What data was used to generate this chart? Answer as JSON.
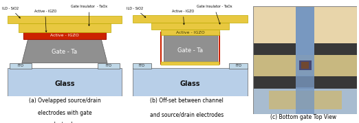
{
  "fig_width": 5.22,
  "fig_height": 1.79,
  "dpi": 100,
  "background": "#ffffff",
  "diagram_a": {
    "glass_color": "#b8cfe8",
    "glass_label": "Glass",
    "ito_color": "#c0d8e8",
    "gate_color": "#909090",
    "gate_label": "Gate - Ta",
    "active_color": "#cc2200",
    "insulator_color": "#e8c840",
    "label_gate_insulator": "Gate Insulator  - TaOx",
    "label_ild": "ILD - SiO2",
    "label_active": "Active - IGZO",
    "label_ito_left": "ITO",
    "label_ito_right": "ITO"
  },
  "diagram_b": {
    "glass_color": "#b8cfe8",
    "glass_label": "Glass",
    "ito_color": "#c0d8e8",
    "gate_color": "#909090",
    "gate_label": "Gate - Ta",
    "active_color": "#cc2200",
    "insulator_color": "#e8c840",
    "label_gate_insulator": "Gate Insulator - TaOx",
    "label_ild": "ILD - SiO2",
    "label_active": "Active - IGZO",
    "label_ito_left": "ITO",
    "label_ito_right": "ITO"
  },
  "diagram_c": {
    "title": "(c) Bottom gate Top View",
    "bg_top": "#e8d5aa",
    "bg_dark": "#383838",
    "gate_strip_color": "#7898c0",
    "channel_dark": "#484870",
    "channel_brown": "#704830",
    "active_color": "#c8b880",
    "light_blue": "#a8bcd0",
    "bottom_dark": "#383838"
  }
}
